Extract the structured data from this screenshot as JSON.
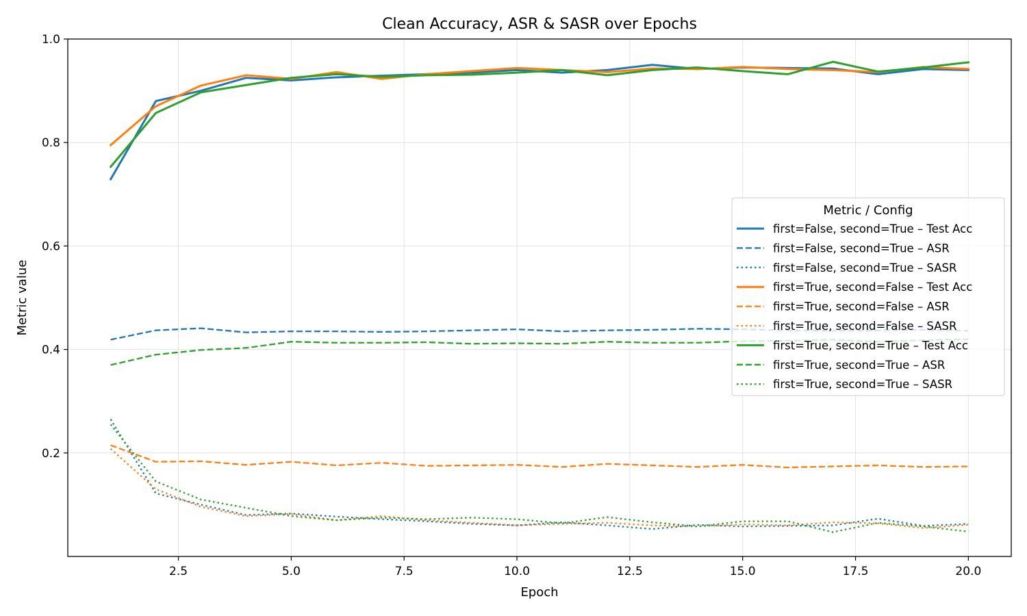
{
  "chart_data": {
    "type": "line",
    "title": "Clean Accuracy, ASR & SASR over Epochs",
    "xlabel": "Epoch",
    "ylabel": "Metric value",
    "xlim": [
      0.05,
      20.95
    ],
    "ylim": [
      0.0,
      1.0
    ],
    "xticks": [
      2.5,
      5.0,
      7.5,
      10.0,
      12.5,
      15.0,
      17.5,
      20.0
    ],
    "xtick_labels": [
      "2.5",
      "5.0",
      "7.5",
      "10.0",
      "12.5",
      "15.0",
      "17.5",
      "20.0"
    ],
    "yticks": [
      0.2,
      0.4,
      0.6,
      0.8,
      1.0
    ],
    "ytick_labels": [
      "0.2",
      "0.4",
      "0.6",
      "0.8",
      "1.0"
    ],
    "grid": true,
    "legend": {
      "title": "Metric / Config",
      "placement": "center-right"
    },
    "x": [
      1,
      2,
      3,
      4,
      5,
      6,
      7,
      8,
      9,
      10,
      11,
      12,
      13,
      14,
      15,
      16,
      17,
      18,
      19,
      20
    ],
    "series": [
      {
        "name": "first=False, second=True – Test Acc",
        "color": "#1f77b4",
        "style": "solid",
        "values": [
          0.729,
          0.88,
          0.9,
          0.925,
          0.92,
          0.926,
          0.929,
          0.932,
          0.935,
          0.94,
          0.935,
          0.94,
          0.95,
          0.942,
          0.945,
          0.944,
          0.943,
          0.932,
          0.942,
          0.94
        ]
      },
      {
        "name": "first=False, second=True – ASR",
        "color": "#1f77b4",
        "style": "dashed",
        "values": [
          0.419,
          0.437,
          0.441,
          0.433,
          0.435,
          0.435,
          0.434,
          0.435,
          0.437,
          0.439,
          0.435,
          0.437,
          0.438,
          0.44,
          0.439,
          0.437,
          0.436,
          0.437,
          0.438,
          0.436
        ]
      },
      {
        "name": "first=False, second=True – SASR",
        "color": "#1f77b4",
        "style": "dotted",
        "values": [
          0.265,
          0.122,
          0.1,
          0.08,
          0.083,
          0.077,
          0.072,
          0.068,
          0.063,
          0.06,
          0.066,
          0.06,
          0.053,
          0.061,
          0.058,
          0.059,
          0.06,
          0.073,
          0.059,
          0.063
        ]
      },
      {
        "name": "first=True, second=False – Test Acc",
        "color": "#ff7f0e",
        "style": "solid",
        "values": [
          0.795,
          0.87,
          0.91,
          0.93,
          0.923,
          0.936,
          0.923,
          0.932,
          0.938,
          0.944,
          0.94,
          0.936,
          0.943,
          0.942,
          0.946,
          0.942,
          0.94,
          0.936,
          0.946,
          0.942
        ]
      },
      {
        "name": "first=True, second=False – ASR",
        "color": "#ff7f0e",
        "style": "dashed",
        "values": [
          0.215,
          0.183,
          0.184,
          0.177,
          0.183,
          0.176,
          0.181,
          0.175,
          0.176,
          0.177,
          0.173,
          0.179,
          0.176,
          0.173,
          0.177,
          0.172,
          0.174,
          0.176,
          0.173,
          0.174
        ]
      },
      {
        "name": "first=True, second=False – SASR",
        "color": "#ff7f0e",
        "style": "dotted",
        "values": [
          0.208,
          0.13,
          0.096,
          0.078,
          0.082,
          0.07,
          0.078,
          0.07,
          0.065,
          0.06,
          0.063,
          0.065,
          0.06,
          0.058,
          0.062,
          0.06,
          0.066,
          0.064,
          0.055,
          0.061
        ]
      },
      {
        "name": "first=True, second=True – Test Acc",
        "color": "#2ca02c",
        "style": "solid",
        "values": [
          0.753,
          0.857,
          0.897,
          0.911,
          0.925,
          0.932,
          0.927,
          0.93,
          0.931,
          0.935,
          0.94,
          0.93,
          0.94,
          0.945,
          0.938,
          0.932,
          0.956,
          0.937,
          0.945,
          0.955
        ]
      },
      {
        "name": "first=True, second=True – ASR",
        "color": "#2ca02c",
        "style": "dashed",
        "values": [
          0.37,
          0.39,
          0.399,
          0.403,
          0.415,
          0.413,
          0.413,
          0.414,
          0.411,
          0.412,
          0.411,
          0.415,
          0.413,
          0.413,
          0.416,
          0.417,
          0.419,
          0.415,
          0.418,
          0.42
        ]
      },
      {
        "name": "first=True, second=True – SASR",
        "color": "#2ca02c",
        "style": "dotted",
        "values": [
          0.255,
          0.145,
          0.11,
          0.094,
          0.078,
          0.07,
          0.075,
          0.072,
          0.075,
          0.072,
          0.064,
          0.076,
          0.066,
          0.058,
          0.068,
          0.068,
          0.047,
          0.065,
          0.058,
          0.048
        ]
      }
    ]
  }
}
